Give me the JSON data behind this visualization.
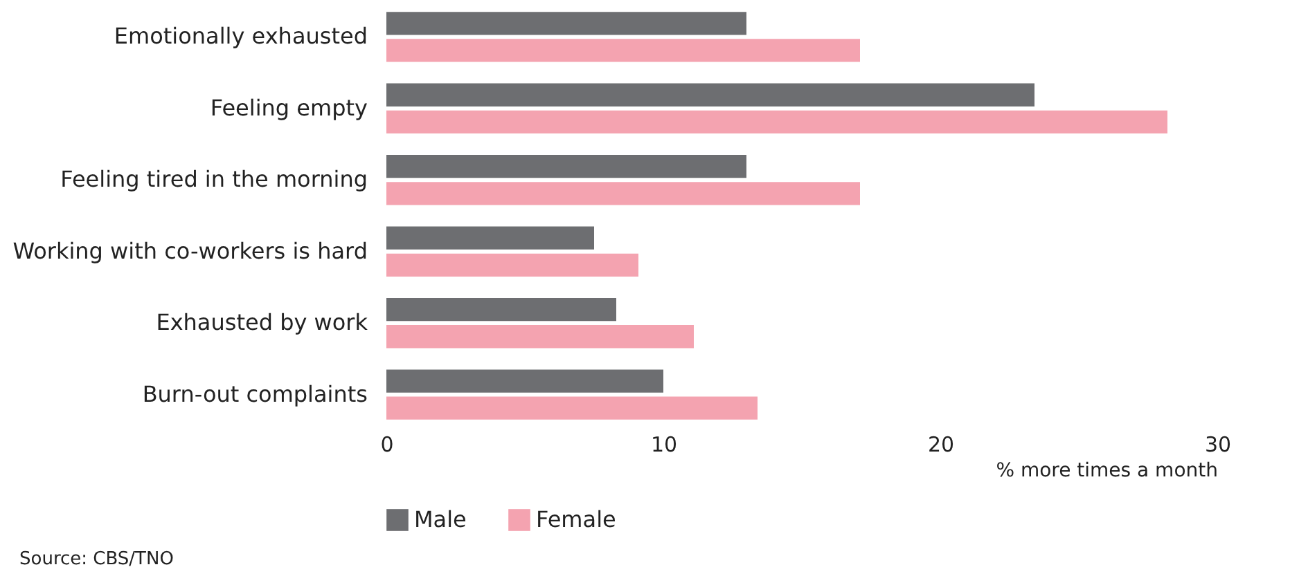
{
  "chart_data": {
    "type": "bar",
    "orientation": "horizontal",
    "categories": [
      "Emotionally exhausted",
      "Feeling empty",
      "Feeling tired in the morning",
      "Working with co-workers is hard",
      "Exhausted by work",
      "Burn-out complaints"
    ],
    "series": [
      {
        "name": "Male",
        "color": "#6d6e71",
        "values": [
          13.0,
          23.4,
          13.0,
          7.5,
          8.3,
          10.0
        ]
      },
      {
        "name": "Female",
        "color": "#f4a3b0",
        "values": [
          17.1,
          28.2,
          17.1,
          9.1,
          11.1,
          13.4
        ]
      }
    ],
    "xlabel": "% more times a month",
    "xlim": [
      0,
      30
    ],
    "xticks": [
      0,
      10,
      20,
      30
    ],
    "grid": false,
    "legend": "bottom",
    "annotations": [
      "Source: CBS/TNO"
    ]
  }
}
